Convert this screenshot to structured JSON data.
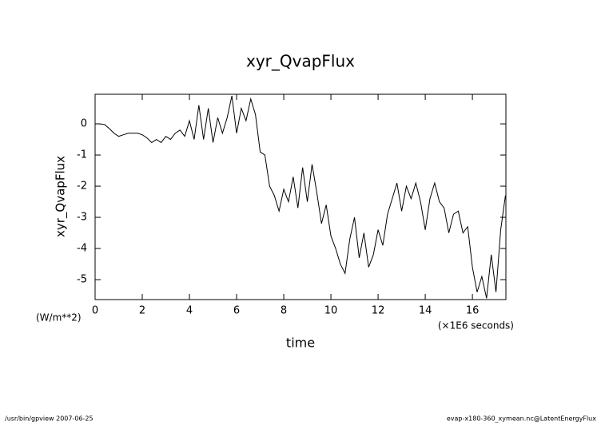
{
  "chart_data": {
    "type": "line",
    "title": "xyr_QvapFlux",
    "y_label": "xyr_QvapFlux",
    "x_label": "time",
    "y_units": "(W/m**2)",
    "x_units": "(×1E6 seconds)",
    "footer_left": "/usr/bin/gpview  2007-06-25",
    "footer_right": "evap-x180-360_xymean.nc@LatentEnergyFlux",
    "x": [
      0,
      0.2,
      0.4,
      0.6,
      0.8,
      1.0,
      1.2,
      1.4,
      1.6,
      1.8,
      2.0,
      2.2,
      2.4,
      2.6,
      2.8,
      3.0,
      3.2,
      3.4,
      3.6,
      3.8,
      4.0,
      4.2,
      4.4,
      4.6,
      4.8,
      5.0,
      5.2,
      5.4,
      5.6,
      5.8,
      6.0,
      6.2,
      6.4,
      6.6,
      6.8,
      7.0,
      7.2,
      7.4,
      7.6,
      7.8,
      8.0,
      8.2,
      8.4,
      8.6,
      8.8,
      9.0,
      9.2,
      9.4,
      9.6,
      9.8,
      10.0,
      10.2,
      10.4,
      10.6,
      10.8,
      11.0,
      11.2,
      11.4,
      11.6,
      11.8,
      12.0,
      12.2,
      12.4,
      12.6,
      12.8,
      13.0,
      13.2,
      13.4,
      13.6,
      13.8,
      14.0,
      14.2,
      14.4,
      14.6,
      14.8,
      15.0,
      15.2,
      15.4,
      15.6,
      15.8,
      16.0,
      16.2,
      16.4,
      16.6,
      16.8,
      17.0,
      17.2,
      17.4
    ],
    "series": [
      {
        "name": "xyr_QvapFlux",
        "color": "#000000",
        "values": [
          0,
          0,
          -0.02,
          -0.15,
          -0.3,
          -0.4,
          -0.35,
          -0.3,
          -0.3,
          -0.3,
          -0.35,
          -0.45,
          -0.6,
          -0.5,
          -0.6,
          -0.4,
          -0.5,
          -0.3,
          -0.2,
          -0.4,
          0.1,
          -0.5,
          0.6,
          -0.5,
          0.5,
          -0.6,
          0.2,
          -0.3,
          0.2,
          0.9,
          -0.3,
          0.5,
          0.1,
          0.8,
          0.3,
          -0.9,
          -1.0,
          -2.0,
          -2.3,
          -2.8,
          -2.1,
          -2.5,
          -1.7,
          -2.7,
          -1.4,
          -2.5,
          -1.3,
          -2.2,
          -3.2,
          -2.6,
          -3.6,
          -4.0,
          -4.5,
          -4.8,
          -3.7,
          -3.0,
          -4.3,
          -3.5,
          -4.6,
          -4.2,
          -3.4,
          -3.9,
          -2.9,
          -2.4,
          -1.9,
          -2.8,
          -2.0,
          -2.4,
          -1.9,
          -2.5,
          -3.4,
          -2.4,
          -1.9,
          -2.5,
          -2.7,
          -3.5,
          -2.9,
          -2.8,
          -3.5,
          -3.3,
          -4.6,
          -5.4,
          -4.9,
          -5.6,
          -4.2,
          -5.4,
          -3.4,
          -2.3
        ]
      }
    ],
    "xlim": [
      0,
      17.42
    ],
    "ylim": [
      -5.64,
      0.95
    ],
    "xticks": [
      0,
      2,
      4,
      6,
      8,
      10,
      12,
      14,
      16
    ],
    "yticks": [
      0,
      -1,
      -2,
      -3,
      -4,
      -5
    ]
  }
}
